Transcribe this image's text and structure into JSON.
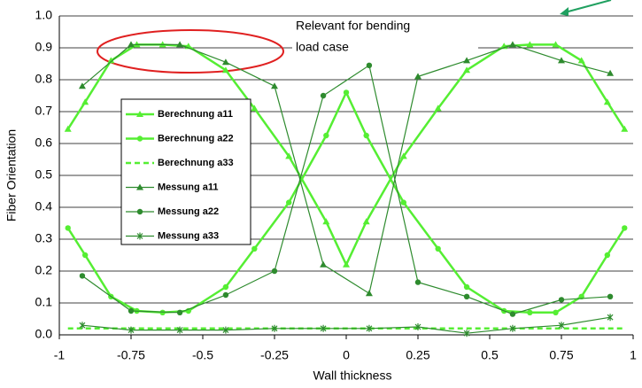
{
  "chart_data": {
    "type": "line",
    "annotation": [
      "Relevant for bending",
      "load case"
    ],
    "x_label": "Wall thickness",
    "y_label": "Fiber Orientation",
    "xlim": [
      -1,
      1
    ],
    "ylim": [
      0,
      1
    ],
    "xticks": [
      -1,
      -0.75,
      -0.5,
      -0.25,
      0,
      0.25,
      0.5,
      0.75,
      1
    ],
    "yticks": [
      {
        "value": 0,
        "label": "0.0"
      },
      0.1,
      0.2,
      0.3,
      0.4,
      0.5,
      0.6,
      0.7,
      0.8,
      0.9,
      {
        "value": 1,
        "label": "1.0"
      }
    ],
    "grid": true,
    "series": [
      {
        "name": "Berechnung a11",
        "color": "#55ee33",
        "marker": "triangle",
        "dashed": false,
        "x": [
          -0.97,
          -0.91,
          -0.82,
          -0.73,
          -0.64,
          -0.55,
          -0.42,
          -0.32,
          -0.2,
          -0.07,
          0,
          0.07,
          0.2,
          0.32,
          0.42,
          0.55,
          0.64,
          0.73,
          0.82,
          0.91,
          0.97
        ],
        "values": [
          0.645,
          0.73,
          0.86,
          0.91,
          0.91,
          0.905,
          0.83,
          0.71,
          0.56,
          0.355,
          0.22,
          0.355,
          0.56,
          0.71,
          0.83,
          0.905,
          0.91,
          0.91,
          0.86,
          0.73,
          0.645
        ]
      },
      {
        "name": "Berechnung a22",
        "color": "#55ee33",
        "marker": "circle",
        "dashed": false,
        "x": [
          -0.97,
          -0.91,
          -0.82,
          -0.73,
          -0.64,
          -0.55,
          -0.42,
          -0.32,
          -0.2,
          -0.07,
          0,
          0.07,
          0.2,
          0.32,
          0.42,
          0.55,
          0.64,
          0.73,
          0.82,
          0.91,
          0.97
        ],
        "values": [
          0.335,
          0.25,
          0.12,
          0.075,
          0.07,
          0.075,
          0.15,
          0.27,
          0.415,
          0.625,
          0.76,
          0.625,
          0.415,
          0.27,
          0.15,
          0.075,
          0.07,
          0.07,
          0.12,
          0.25,
          0.335
        ]
      },
      {
        "name": "Berechnung a33",
        "color": "#55ee33",
        "marker": "none",
        "dashed": true,
        "x": [
          -0.97,
          0.97
        ],
        "values": [
          0.02,
          0.02
        ]
      },
      {
        "name": "Messung a11",
        "color": "#2e8b2e",
        "marker": "triangle",
        "dashed": false,
        "x": [
          -0.92,
          -0.75,
          -0.58,
          -0.42,
          -0.25,
          -0.08,
          0.08,
          0.25,
          0.42,
          0.58,
          0.75,
          0.92
        ],
        "values": [
          0.78,
          0.91,
          0.91,
          0.855,
          0.78,
          0.22,
          0.13,
          0.81,
          0.86,
          0.91,
          0.86,
          0.82
        ]
      },
      {
        "name": "Messung a22",
        "color": "#2e8b2e",
        "marker": "circle",
        "dashed": false,
        "x": [
          -0.92,
          -0.75,
          -0.58,
          -0.42,
          -0.25,
          -0.08,
          0.08,
          0.25,
          0.42,
          0.58,
          0.75,
          0.92
        ],
        "values": [
          0.185,
          0.075,
          0.07,
          0.125,
          0.2,
          0.75,
          0.845,
          0.165,
          0.12,
          0.065,
          0.11,
          0.12
        ]
      },
      {
        "name": "Messung a33",
        "color": "#2e8b2e",
        "marker": "cross",
        "dashed": false,
        "x": [
          -0.92,
          -0.75,
          -0.58,
          -0.42,
          -0.25,
          -0.08,
          0.08,
          0.25,
          0.42,
          0.58,
          0.75,
          0.92
        ],
        "values": [
          0.03,
          0.015,
          0.015,
          0.015,
          0.02,
          0.02,
          0.02,
          0.025,
          0.005,
          0.02,
          0.03,
          0.055
        ]
      }
    ]
  }
}
